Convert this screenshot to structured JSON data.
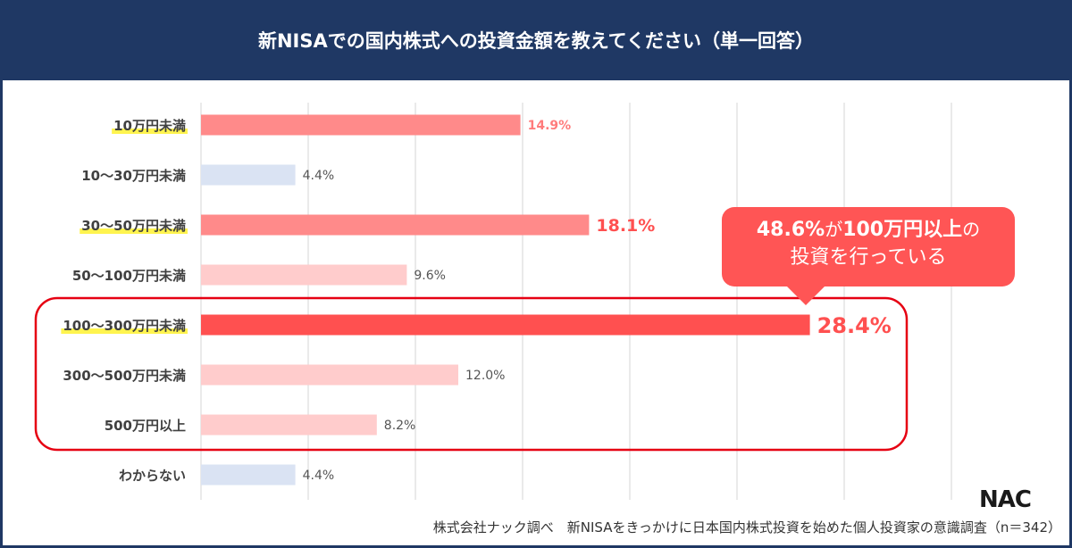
{
  "chart_data": {
    "type": "bar",
    "orientation": "horizontal",
    "title": "新NISAでの国内株式への投資金額を教えてください（単一回答）",
    "categories": [
      "10万円未満",
      "10〜30万円未満",
      "30〜50万円未満",
      "50〜100万円未満",
      "100〜300万円未満",
      "300〜500万円未満",
      "500万円以上",
      "わからない"
    ],
    "values": [
      14.9,
      4.4,
      18.1,
      9.6,
      28.4,
      12.0,
      8.2,
      4.4
    ],
    "data_labels": [
      "14.9%",
      "4.4%",
      "18.1%",
      "9.6%",
      "28.4%",
      "12.0%",
      "8.2%",
      "4.4%"
    ],
    "highlighted_categories": [
      "10万円未満",
      "30〜50万円未満",
      "100〜300万円未満"
    ],
    "bar_colors": [
      "#ff8a8a",
      "#dae3f3",
      "#ff8a8a",
      "#ffcccc",
      "#ff5050",
      "#ffcccc",
      "#ffcccc",
      "#dae3f3"
    ],
    "xlim": [
      0,
      35
    ],
    "grid": true,
    "unit": "%"
  },
  "callout": {
    "line1_a": "48.6%",
    "line1_b": "が",
    "line1_c": "100万円以上",
    "line1_d": "の",
    "line2": "投資を行っている"
  },
  "logo": "NAC",
  "source": "株式会社ナック調べ　新NISAをきっかけに日本国内株式投資を始めた個人投資家の意識調査（n＝342）",
  "colors": {
    "header": "#1f3864",
    "accent": "#ff5050",
    "highlight": "#fff44f",
    "box": "#e60012"
  }
}
